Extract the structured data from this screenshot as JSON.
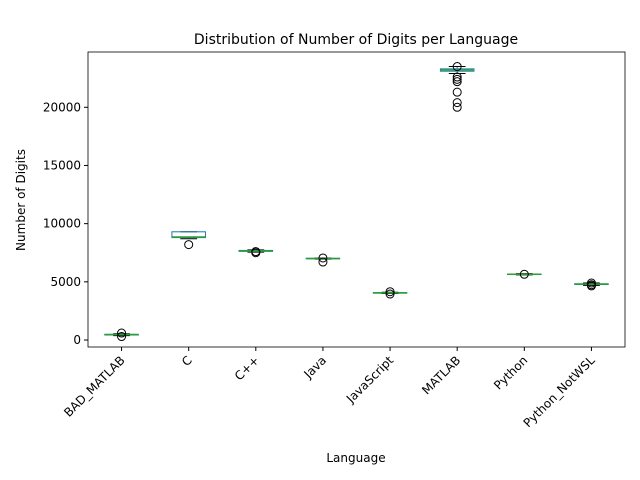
{
  "chart_data": {
    "type": "box",
    "title": "Distribution of Number of Digits per Language",
    "x_label": "Language",
    "y_label": "Number of Digits",
    "categories": [
      "BAD_MATLAB",
      "C",
      "C++",
      "Java",
      "JavaScript",
      "MATLAB",
      "Python",
      "Python_NotWSL"
    ],
    "box_color": "#1f77b4",
    "median_color": "#2ca02c",
    "boxes": [
      {
        "whislo": 380,
        "q1": 430,
        "med": 460,
        "q3": 490,
        "whishi": 540,
        "fliers": [
          300,
          600
        ]
      },
      {
        "whislo": 8700,
        "q1": 8800,
        "med": 8850,
        "q3": 9300,
        "whishi": 9300,
        "fliers": [
          8200
        ]
      },
      {
        "whislo": 7550,
        "q1": 7620,
        "med": 7660,
        "q3": 7700,
        "whishi": 7750,
        "fliers": [
          7500,
          7600
        ]
      },
      {
        "whislo": 6950,
        "q1": 6980,
        "med": 7000,
        "q3": 7020,
        "whishi": 7050,
        "fliers": [
          6700,
          7050
        ]
      },
      {
        "whislo": 4000,
        "q1": 4030,
        "med": 4050,
        "q3": 4070,
        "whishi": 4100,
        "fliers": [
          3950,
          4150
        ]
      },
      {
        "whislo": 22900,
        "q1": 23100,
        "med": 23200,
        "q3": 23300,
        "whishi": 23500,
        "fliers": [
          20000,
          20400,
          21300,
          22200,
          22400,
          22600,
          23500
        ]
      },
      {
        "whislo": 5600,
        "q1": 5630,
        "med": 5650,
        "q3": 5670,
        "whishi": 5700,
        "fliers": [
          5650
        ]
      },
      {
        "whislo": 4700,
        "q1": 4770,
        "med": 4800,
        "q3": 4830,
        "whishi": 4900,
        "fliers": [
          4650,
          4750,
          4900
        ]
      }
    ],
    "ylim": [
      -600,
      24750
    ],
    "yticks": [
      0,
      5000,
      10000,
      15000,
      20000
    ]
  }
}
